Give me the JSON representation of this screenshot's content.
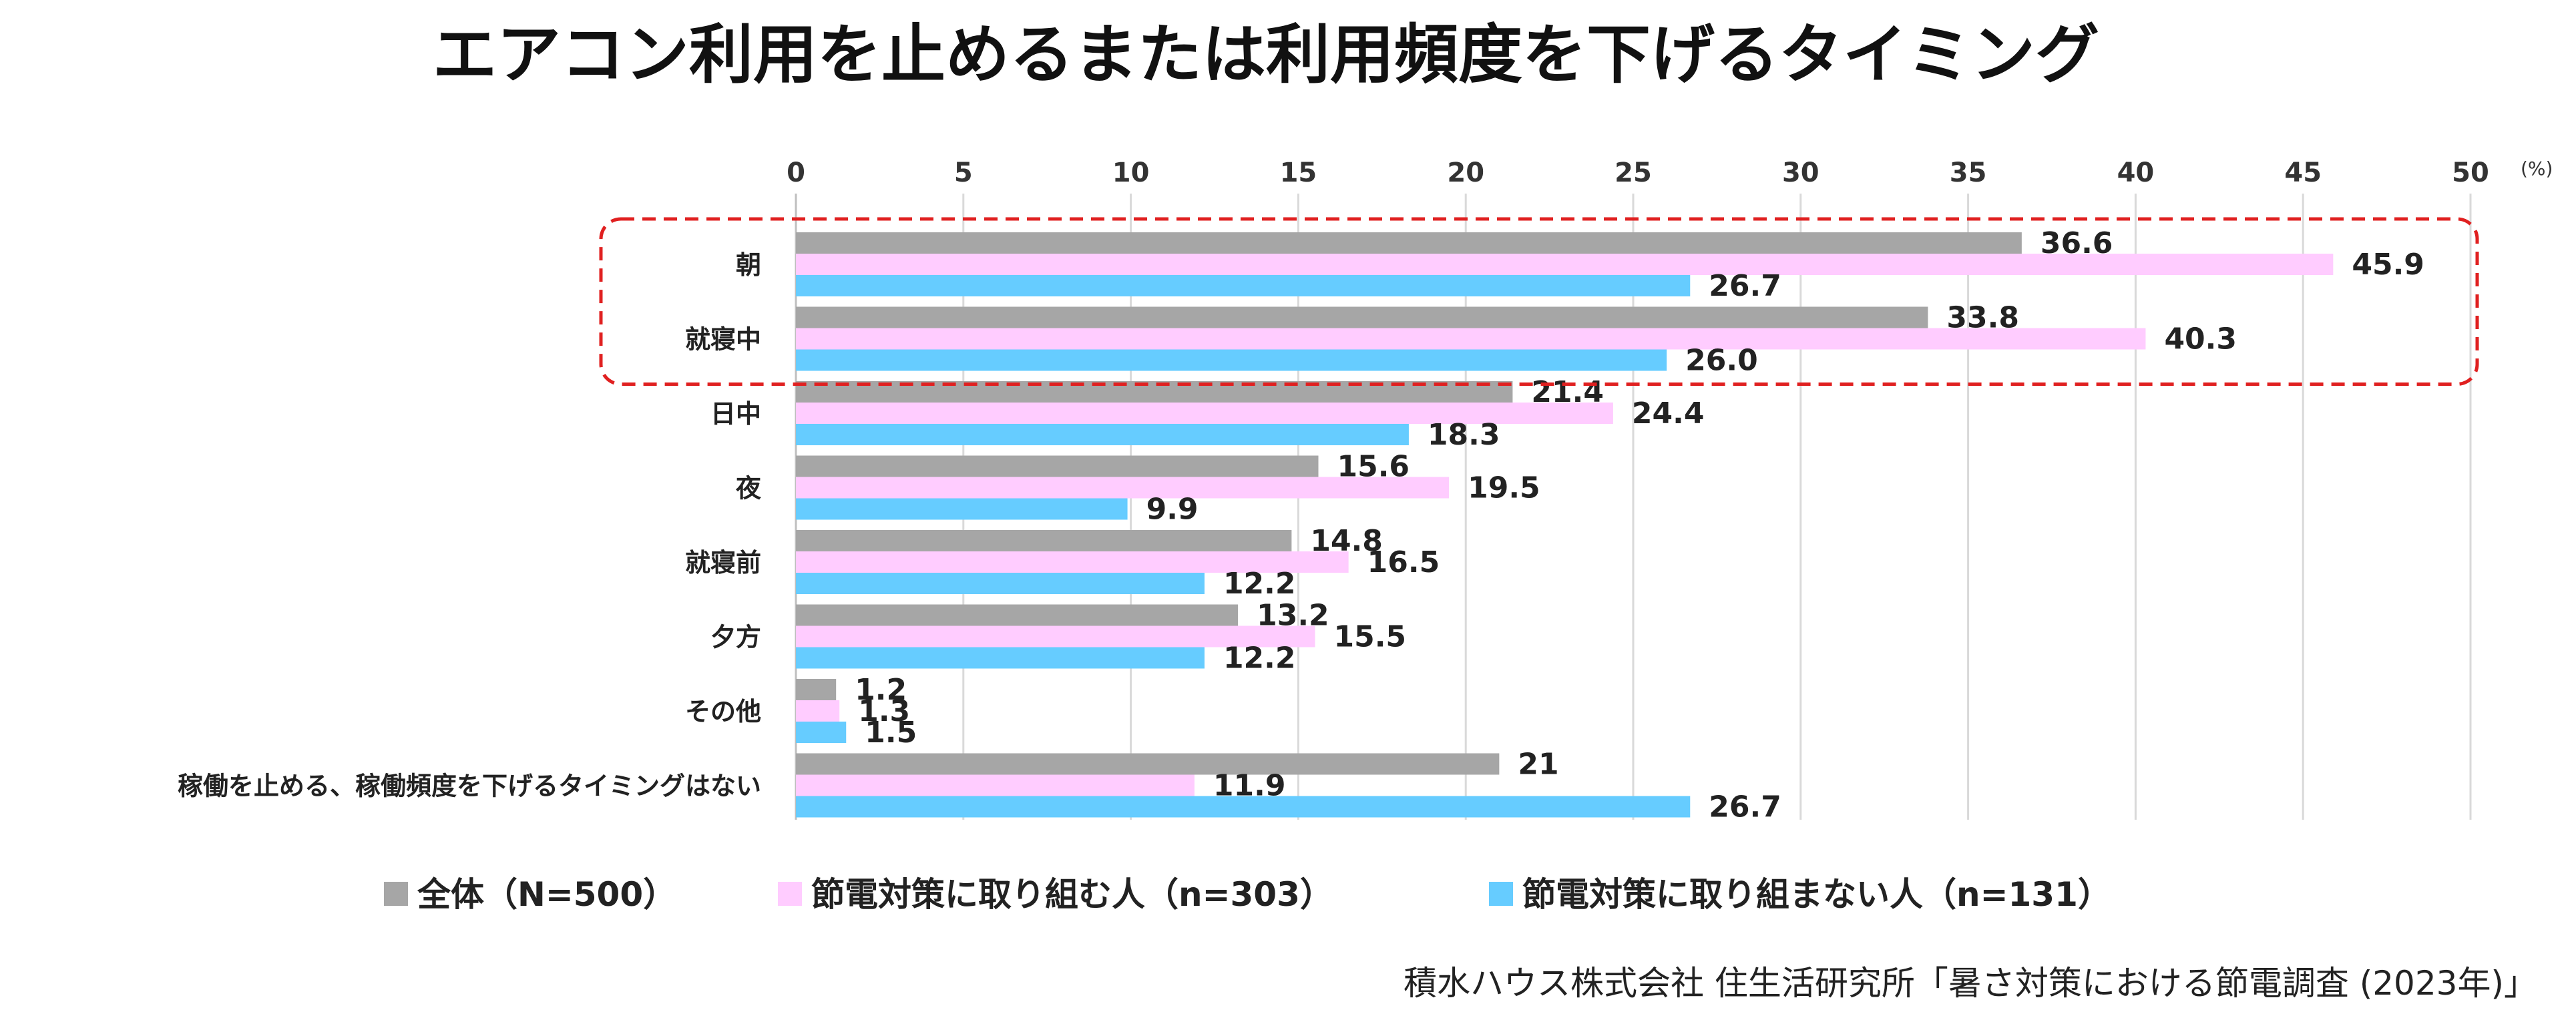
{
  "chart_data": {
    "type": "bar",
    "orientation": "horizontal",
    "title": "エアコン利用を止めるまたは利用頻度を下げるタイミング",
    "unit_label": "(%)",
    "xlim": [
      0,
      50
    ],
    "ticks": [
      0,
      5,
      10,
      15,
      20,
      25,
      30,
      35,
      40,
      45,
      50
    ],
    "grid": true,
    "categories": [
      "朝",
      "就寝中",
      "日中",
      "夜",
      "就寝前",
      "夕方",
      "その他",
      "稼働を止める、稼働頻度を下げるタイミングはない"
    ],
    "series": [
      {
        "name": "全体（N=500）",
        "color": "#A6A6A6",
        "values": [
          36.6,
          33.8,
          21.4,
          15.6,
          14.8,
          13.2,
          1.2,
          21
        ],
        "labels": [
          "36.6",
          "33.8",
          "21.4",
          "15.6",
          "14.8",
          "13.2",
          "1.2",
          "21"
        ]
      },
      {
        "name": "節電対策に取り組む人（n=303）",
        "color": "#FFCCFF",
        "values": [
          45.9,
          40.3,
          24.4,
          19.5,
          16.5,
          15.5,
          1.3,
          11.9
        ],
        "labels": [
          "45.9",
          "40.3",
          "24.4",
          "19.5",
          "16.5",
          "15.5",
          "1.3",
          "11.9"
        ]
      },
      {
        "name": "節電対策に取り組まない人（n=131）",
        "color": "#66CCFF",
        "values": [
          26.7,
          26.0,
          18.3,
          9.9,
          12.2,
          12.2,
          1.5,
          26.7
        ],
        "labels": [
          "26.7",
          "26.0",
          "18.3",
          "9.9",
          "12.2",
          "12.2",
          "1.5",
          "26.7"
        ]
      }
    ],
    "highlight": {
      "categories": [
        "朝",
        "就寝中"
      ],
      "color": "#E02020"
    },
    "legend_position": "bottom",
    "source": "積水ハウス株式会社 住生活研究所「暑さ対策における節電調査 (2023年)」"
  }
}
